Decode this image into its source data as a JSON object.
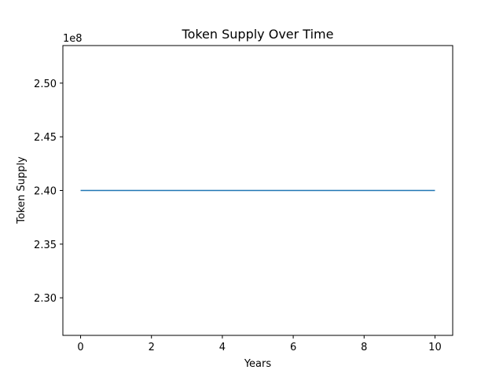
{
  "chart_data": {
    "type": "line",
    "title": "Token Supply Over Time",
    "xlabel": "Years",
    "ylabel": "Token Supply",
    "y_offset_label": "1e8",
    "xlim": [
      -0.5,
      10.5
    ],
    "ylim": [
      2.265,
      2.535
    ],
    "x_ticks": [
      0,
      2,
      4,
      6,
      8,
      10
    ],
    "x_tick_labels": [
      "0",
      "2",
      "4",
      "6",
      "8",
      "10"
    ],
    "y_ticks": [
      2.3,
      2.35,
      2.4,
      2.45,
      2.5
    ],
    "y_tick_labels": [
      "2.30",
      "2.35",
      "2.40",
      "2.45",
      "2.50"
    ],
    "grid": false,
    "series": [
      {
        "color": "#1f77b4",
        "x": [
          0,
          1,
          2,
          3,
          4,
          5,
          6,
          7,
          8,
          9,
          10
        ],
        "y": [
          2.4,
          2.4,
          2.4,
          2.4,
          2.4,
          2.4,
          2.4,
          2.4,
          2.4,
          2.4,
          2.4
        ]
      }
    ]
  }
}
